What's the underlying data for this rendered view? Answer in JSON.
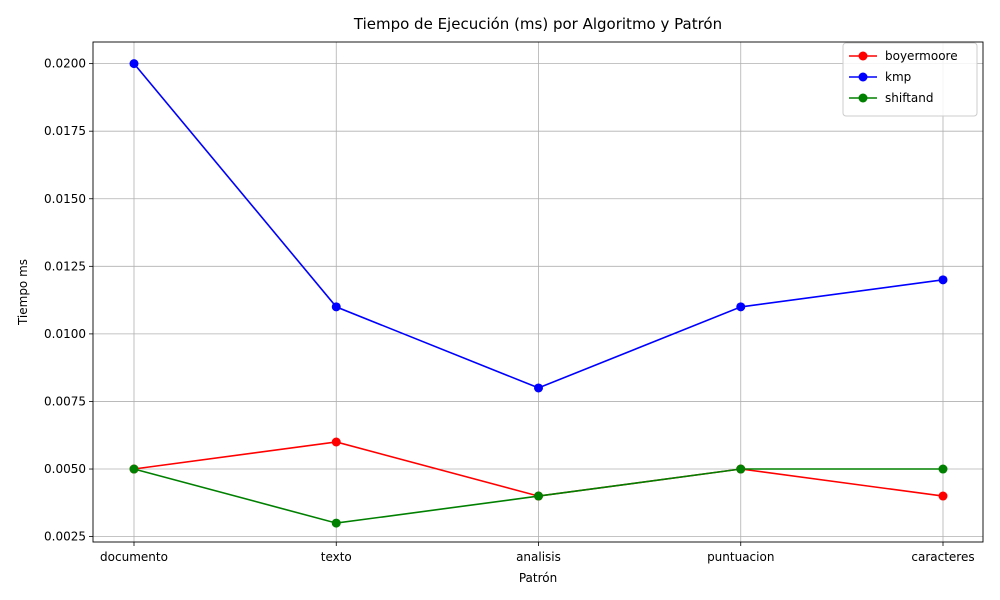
{
  "chart_data": {
    "type": "line",
    "title": "Tiempo de Ejecución (ms) por Algoritmo y Patrón",
    "xlabel": "Patrón",
    "ylabel": "Tiempo ms",
    "categories": [
      "documento",
      "texto",
      "analisis",
      "puntuacion",
      "caracteres"
    ],
    "ylim": [
      0.0023,
      0.0208
    ],
    "yticks": [
      "0.0025",
      "0.0050",
      "0.0075",
      "0.0100",
      "0.0125",
      "0.0150",
      "0.0175",
      "0.0200"
    ],
    "grid": true,
    "legend_position": "top-right",
    "series": [
      {
        "name": "boyermoore",
        "color": "#ff0000",
        "values": [
          0.005,
          0.006,
          0.004,
          0.005,
          0.004
        ]
      },
      {
        "name": "kmp",
        "color": "#0000ff",
        "values": [
          0.02,
          0.011,
          0.008,
          0.011,
          0.012
        ]
      },
      {
        "name": "shiftand",
        "color": "#008000",
        "values": [
          0.005,
          0.003,
          0.004,
          0.005,
          0.005
        ]
      }
    ]
  }
}
